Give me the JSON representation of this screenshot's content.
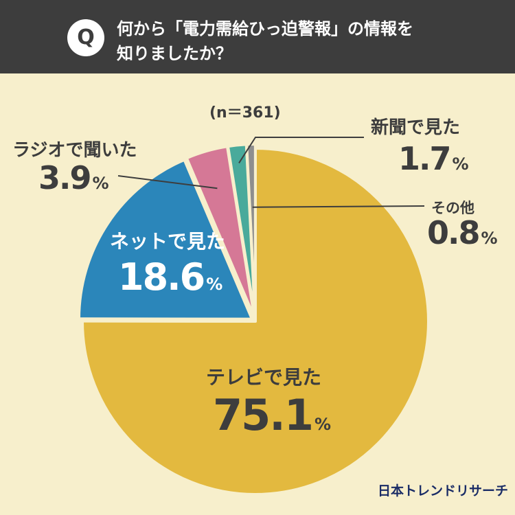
{
  "header": {
    "badge": "Q",
    "question_line1": "何から「電力需給ひっ迫警報」の情報を",
    "question_line2": "知りましたか？"
  },
  "chart_data": {
    "type": "pie",
    "sample_size": "(n＝361)",
    "percent_sign": "%",
    "slices": [
      {
        "name": "テレビで見た",
        "value": 75.1,
        "value_text": "75.1",
        "color": "#e3b93f"
      },
      {
        "name": "ネットで見た",
        "value": 18.6,
        "value_text": "18.6",
        "color": "#2b86ba"
      },
      {
        "name": "ラジオで聞いた",
        "value": 3.9,
        "value_text": "3.9",
        "color": "#d57896"
      },
      {
        "name": "新聞で見た",
        "value": 1.7,
        "value_text": "1.7",
        "color": "#49aa9b"
      },
      {
        "name": "その他",
        "value": 0.8,
        "value_text": "0.8",
        "color": "#8e8e8e"
      }
    ]
  },
  "footer": {
    "brand": "日本トレンドリサーチ"
  }
}
